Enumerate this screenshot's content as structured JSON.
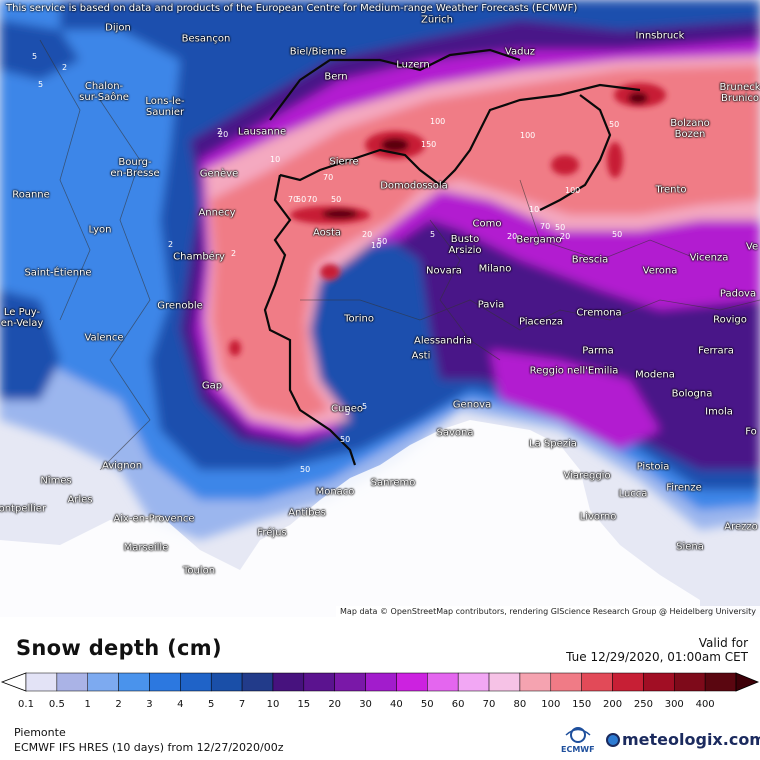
{
  "map": {
    "disclaimer": "This service is based on data and products of the European Centre for Medium-range Weather Forecasts (ECMWF)",
    "attribution": "Map data © OpenStreetMap contributors, rendering GIScience Research Group @ Heidelberg University",
    "cities": [
      {
        "name": "Dijon"
      },
      {
        "name": "Besançon"
      },
      {
        "name": "Zürich"
      },
      {
        "name": "Biel/Bienne"
      },
      {
        "name": "Vaduz"
      },
      {
        "name": "Innsbruck"
      },
      {
        "name": "Chalon-\nsur-Saône"
      },
      {
        "name": "Bern"
      },
      {
        "name": "Luzern"
      },
      {
        "name": "Bruneck\nBrunico"
      },
      {
        "name": "Lons-le-\nSaunier"
      },
      {
        "name": "Lausanne"
      },
      {
        "name": "Bolzano\nBozen"
      },
      {
        "name": "Sierre"
      },
      {
        "name": "Bourg-\nen-Bresse"
      },
      {
        "name": "Genève"
      },
      {
        "name": "Domodossola"
      },
      {
        "name": "Trento"
      },
      {
        "name": "Roanne"
      },
      {
        "name": "Annecy"
      },
      {
        "name": "Como"
      },
      {
        "name": "Lyon"
      },
      {
        "name": "Aosta"
      },
      {
        "name": "Busto\nArsizio"
      },
      {
        "name": "Bergamo"
      },
      {
        "name": "Chambéry"
      },
      {
        "name": "Saint-Étienne"
      },
      {
        "name": "Novara"
      },
      {
        "name": "Milano"
      },
      {
        "name": "Brescia"
      },
      {
        "name": "Verona"
      },
      {
        "name": "Vicenza"
      },
      {
        "name": "Le Puy-\nen-Velay"
      },
      {
        "name": "Grenoble"
      },
      {
        "name": "Padova"
      },
      {
        "name": "Pavia"
      },
      {
        "name": "Piacenza"
      },
      {
        "name": "Cremona"
      },
      {
        "name": "Rovigo"
      },
      {
        "name": "Torino"
      },
      {
        "name": "Valence"
      },
      {
        "name": "Alessandria"
      },
      {
        "name": "Ferrara"
      },
      {
        "name": "Asti"
      },
      {
        "name": "Parma"
      },
      {
        "name": "Reggio nell'Emilia"
      },
      {
        "name": "Modena"
      },
      {
        "name": "Gap"
      },
      {
        "name": "Bologna"
      },
      {
        "name": "Cuneo"
      },
      {
        "name": "Genova"
      },
      {
        "name": "Imola"
      },
      {
        "name": "Savona"
      },
      {
        "name": "La Spezia"
      },
      {
        "name": "Avignon"
      },
      {
        "name": "Pistoia"
      },
      {
        "name": "Nîmes"
      },
      {
        "name": "Sanremo"
      },
      {
        "name": "Viareggio"
      },
      {
        "name": "Lucca"
      },
      {
        "name": "Firenze"
      },
      {
        "name": "Arles"
      },
      {
        "name": "Monaco"
      },
      {
        "name": "Antibes"
      },
      {
        "name": "Montpellier"
      },
      {
        "name": "Aix-en-Provence"
      },
      {
        "name": "Livorno"
      },
      {
        "name": "Arezzo"
      },
      {
        "name": "Fréjus"
      },
      {
        "name": "Marseille"
      },
      {
        "name": "Siena"
      },
      {
        "name": "Toulon"
      },
      {
        "name": "Fo"
      },
      {
        "name": "Ve"
      }
    ],
    "contour_labels": [
      "5",
      "2",
      "5",
      "2",
      "20",
      "10",
      "70",
      "100",
      "150",
      "100",
      "100",
      "50",
      "50",
      "20",
      "10",
      "50",
      "50",
      "70",
      "70",
      "50",
      "20",
      "10",
      "5",
      "2",
      "2",
      "5",
      "50",
      "70",
      "20",
      "50",
      "5",
      "50"
    ]
  },
  "legend": {
    "title": "Snow depth (cm)",
    "valid_label": "Valid for",
    "valid_date": "Tue 12/29/2020, 01:00am CET",
    "ticks": [
      "0.1",
      "0.5",
      "1",
      "2",
      "3",
      "4",
      "5",
      "7",
      "10",
      "15",
      "20",
      "30",
      "40",
      "50",
      "60",
      "70",
      "80",
      "100",
      "150",
      "200",
      "250",
      "300",
      "400"
    ],
    "colors": [
      "#ffffff",
      "#e3e3f6",
      "#aab3e6",
      "#7daaf0",
      "#4a93ec",
      "#2c78e0",
      "#1f63c8",
      "#1a4fa8",
      "#223b8a",
      "#47127e",
      "#5b138f",
      "#7a18a8",
      "#a21ccc",
      "#cc22e0",
      "#e466ef",
      "#f2a7f4",
      "#f6c2e6",
      "#f5a3b0",
      "#f07b86",
      "#e24a58",
      "#c71f35",
      "#a10e24",
      "#7e0a1a",
      "#5a0610",
      "#3d0008"
    ]
  },
  "footer": {
    "region": "Piemonte",
    "model": "ECMWF IFS HRES (10 days) from 12/27/2020/00z",
    "ecmwf_label": "ECMWF",
    "brand": "meteologix.com"
  }
}
